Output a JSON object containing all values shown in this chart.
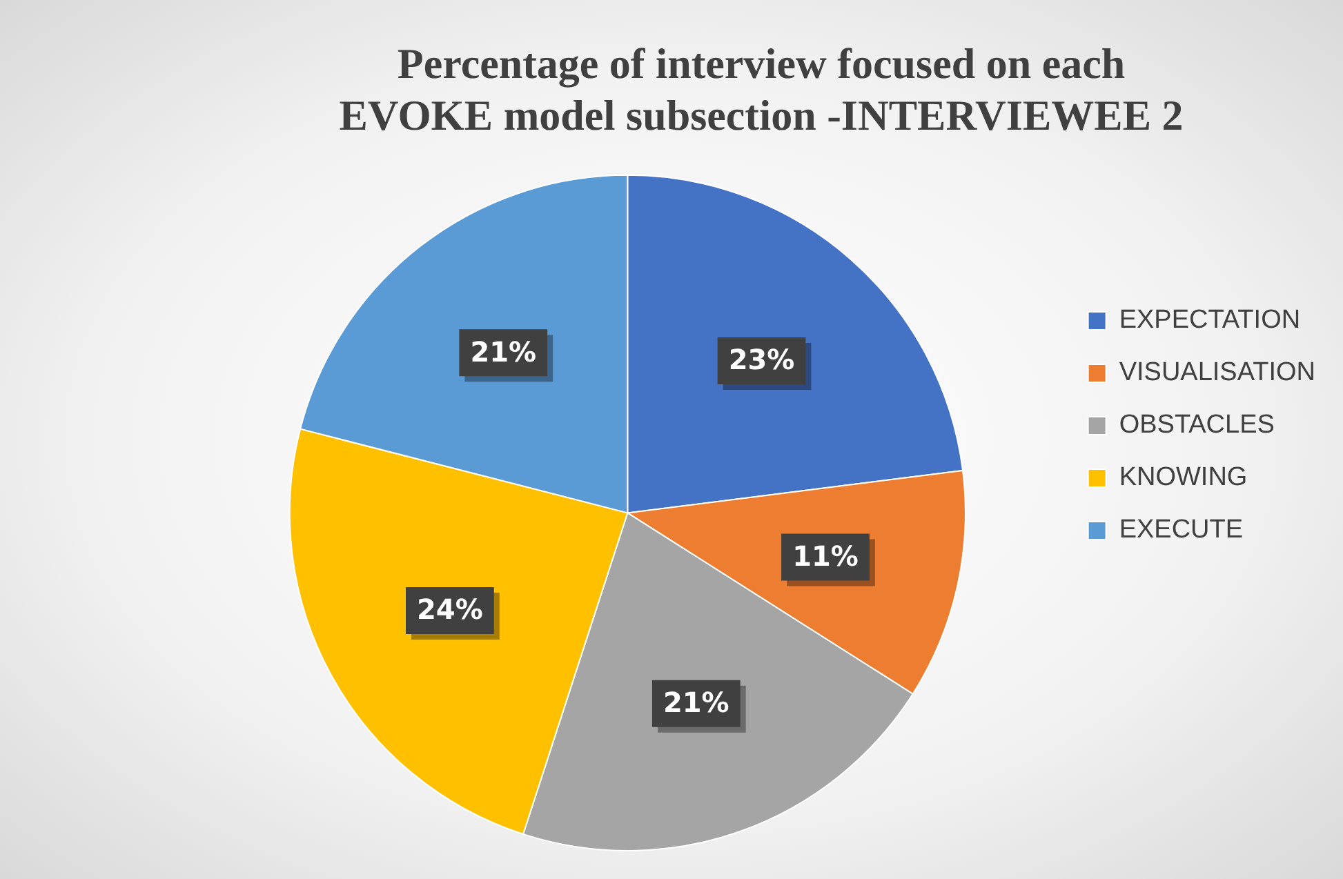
{
  "chart_data": {
    "type": "pie",
    "title": "Percentage of interview focused on each\nEVOKE model subsection -INTERVIEWEE 2",
    "categories": [
      "EXPECTATION",
      "VISUALISATION",
      "OBSTACLES",
      "KNOWING",
      "EXECUTE"
    ],
    "values": [
      23,
      11,
      21,
      24,
      21
    ],
    "colors": [
      "#4472c4",
      "#ed7d31",
      "#a5a5a5",
      "#ffc000",
      "#5b9bd5"
    ],
    "value_labels": [
      "23%",
      "11%",
      "21%",
      "24%",
      "21%"
    ],
    "legend": "right"
  }
}
